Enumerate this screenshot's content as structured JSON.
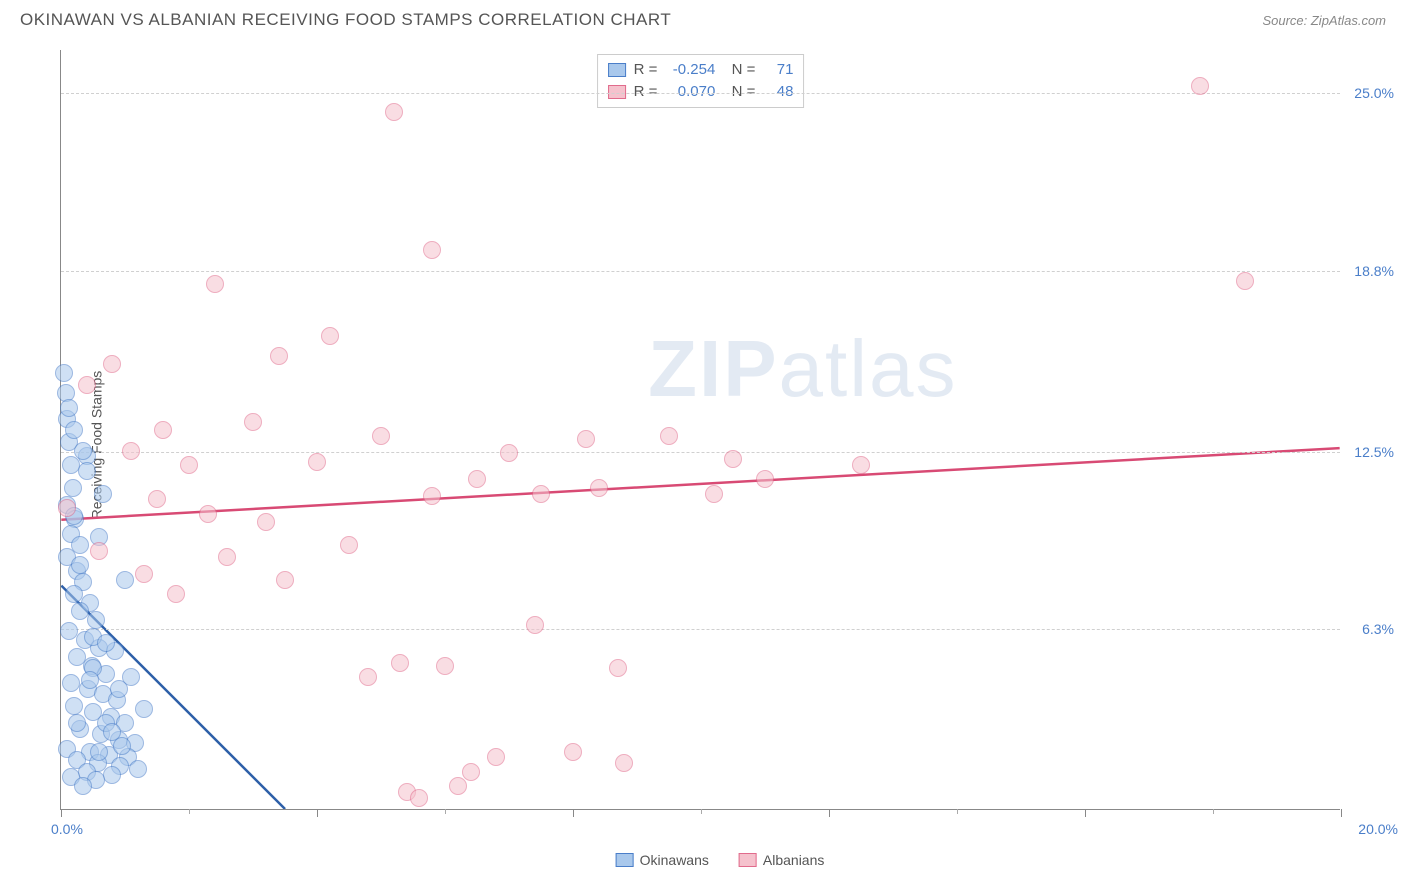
{
  "header": {
    "title": "OKINAWAN VS ALBANIAN RECEIVING FOOD STAMPS CORRELATION CHART",
    "source": "Source: ZipAtlas.com"
  },
  "watermark": {
    "bold": "ZIP",
    "rest": "atlas"
  },
  "chart": {
    "type": "scatter",
    "ylabel": "Receiving Food Stamps",
    "xlim": [
      0,
      20
    ],
    "ylim": [
      0,
      26.5
    ],
    "yticks": [
      {
        "v": 6.3,
        "label": "6.3%"
      },
      {
        "v": 12.5,
        "label": "12.5%"
      },
      {
        "v": 18.8,
        "label": "18.8%"
      },
      {
        "v": 25.0,
        "label": "25.0%"
      }
    ],
    "xlabel_min": "0.0%",
    "xlabel_max": "20.0%",
    "xtick_major_step": 4,
    "xtick_minor_step": 2,
    "background_color": "#ffffff",
    "grid_color": "#d0d0d0",
    "axis_color": "#888888",
    "tick_label_color": "#4a7ec9",
    "marker_radius": 9,
    "marker_opacity": 0.55,
    "series": [
      {
        "name": "Okinawans",
        "color_fill": "#a9c8ec",
        "color_stroke": "#4a7ec9",
        "R": "-0.254",
        "N": "71",
        "trend": {
          "x1": 0,
          "y1": 7.8,
          "x2": 3.5,
          "y2": 0,
          "color": "#2d5fa8",
          "width": 2.5,
          "dash_extend_x": 4.5
        },
        "points": [
          [
            0.05,
            15.2
          ],
          [
            0.08,
            14.5
          ],
          [
            0.1,
            13.6
          ],
          [
            0.12,
            12.8
          ],
          [
            0.15,
            12.0
          ],
          [
            0.18,
            11.2
          ],
          [
            0.1,
            10.6
          ],
          [
            0.22,
            10.1
          ],
          [
            0.15,
            9.6
          ],
          [
            0.3,
            9.2
          ],
          [
            0.1,
            8.8
          ],
          [
            0.25,
            8.3
          ],
          [
            0.4,
            12.3
          ],
          [
            0.35,
            7.9
          ],
          [
            0.2,
            7.5
          ],
          [
            0.45,
            7.2
          ],
          [
            0.3,
            6.9
          ],
          [
            0.55,
            6.6
          ],
          [
            0.12,
            6.2
          ],
          [
            0.38,
            5.9
          ],
          [
            0.6,
            5.6
          ],
          [
            0.25,
            5.3
          ],
          [
            0.48,
            5.0
          ],
          [
            0.7,
            4.7
          ],
          [
            0.15,
            4.4
          ],
          [
            0.42,
            4.2
          ],
          [
            0.65,
            4.0
          ],
          [
            0.88,
            3.8
          ],
          [
            0.2,
            3.6
          ],
          [
            0.5,
            3.4
          ],
          [
            0.78,
            3.2
          ],
          [
            1.0,
            3.0
          ],
          [
            0.3,
            2.8
          ],
          [
            0.62,
            2.6
          ],
          [
            0.9,
            2.4
          ],
          [
            1.15,
            2.3
          ],
          [
            0.1,
            2.1
          ],
          [
            0.45,
            2.0
          ],
          [
            0.75,
            1.9
          ],
          [
            1.05,
            1.8
          ],
          [
            0.25,
            1.7
          ],
          [
            0.58,
            1.6
          ],
          [
            0.92,
            1.5
          ],
          [
            1.2,
            1.4
          ],
          [
            0.4,
            1.3
          ],
          [
            0.8,
            1.2
          ],
          [
            0.15,
            1.1
          ],
          [
            0.55,
            1.0
          ],
          [
            0.95,
            2.2
          ],
          [
            0.35,
            0.8
          ],
          [
            0.7,
            3.0
          ],
          [
            1.1,
            4.6
          ],
          [
            0.5,
            4.9
          ],
          [
            1.0,
            8.0
          ],
          [
            0.3,
            8.5
          ],
          [
            0.6,
            9.5
          ],
          [
            0.2,
            10.2
          ],
          [
            0.65,
            11.0
          ],
          [
            0.4,
            11.8
          ],
          [
            0.12,
            14.0
          ],
          [
            0.2,
            13.2
          ],
          [
            0.35,
            12.5
          ],
          [
            0.5,
            6.0
          ],
          [
            0.85,
            5.5
          ],
          [
            0.45,
            4.5
          ],
          [
            0.7,
            5.8
          ],
          [
            0.25,
            3.0
          ],
          [
            0.9,
            4.2
          ],
          [
            1.3,
            3.5
          ],
          [
            0.6,
            2.0
          ],
          [
            0.8,
            2.7
          ]
        ]
      },
      {
        "name": "Albanians",
        "color_fill": "#f5c2cd",
        "color_stroke": "#e16b8c",
        "R": "0.070",
        "N": "48",
        "trend": {
          "x1": 0,
          "y1": 10.1,
          "x2": 20,
          "y2": 12.6,
          "color": "#d84a74",
          "width": 2.5
        },
        "points": [
          [
            0.1,
            10.5
          ],
          [
            0.4,
            14.8
          ],
          [
            0.6,
            9.0
          ],
          [
            0.8,
            15.5
          ],
          [
            1.1,
            12.5
          ],
          [
            1.3,
            8.2
          ],
          [
            1.5,
            10.8
          ],
          [
            1.6,
            13.2
          ],
          [
            1.8,
            7.5
          ],
          [
            2.0,
            12.0
          ],
          [
            2.3,
            10.3
          ],
          [
            2.4,
            18.3
          ],
          [
            2.6,
            8.8
          ],
          [
            3.0,
            13.5
          ],
          [
            3.2,
            10.0
          ],
          [
            3.4,
            15.8
          ],
          [
            3.5,
            8.0
          ],
          [
            4.0,
            12.1
          ],
          [
            4.2,
            16.5
          ],
          [
            4.5,
            9.2
          ],
          [
            4.8,
            4.6
          ],
          [
            5.0,
            13.0
          ],
          [
            5.2,
            24.3
          ],
          [
            5.3,
            5.1
          ],
          [
            5.4,
            0.6
          ],
          [
            5.6,
            0.4
          ],
          [
            5.8,
            10.9
          ],
          [
            5.8,
            19.5
          ],
          [
            6.0,
            5.0
          ],
          [
            6.2,
            0.8
          ],
          [
            6.4,
            1.3
          ],
          [
            6.5,
            11.5
          ],
          [
            6.8,
            1.8
          ],
          [
            7.0,
            12.4
          ],
          [
            7.4,
            6.4
          ],
          [
            7.5,
            11.0
          ],
          [
            8.0,
            2.0
          ],
          [
            8.2,
            12.9
          ],
          [
            8.4,
            11.2
          ],
          [
            8.7,
            4.9
          ],
          [
            8.8,
            1.6
          ],
          [
            9.5,
            13.0
          ],
          [
            10.2,
            11.0
          ],
          [
            10.5,
            12.2
          ],
          [
            11.0,
            11.5
          ],
          [
            12.5,
            12.0
          ],
          [
            17.8,
            25.2
          ],
          [
            18.5,
            18.4
          ]
        ]
      }
    ],
    "legend_bottom": [
      {
        "label": "Okinawans",
        "fill": "#a9c8ec",
        "stroke": "#4a7ec9"
      },
      {
        "label": "Albanians",
        "fill": "#f5c2cd",
        "stroke": "#e16b8c"
      }
    ]
  }
}
